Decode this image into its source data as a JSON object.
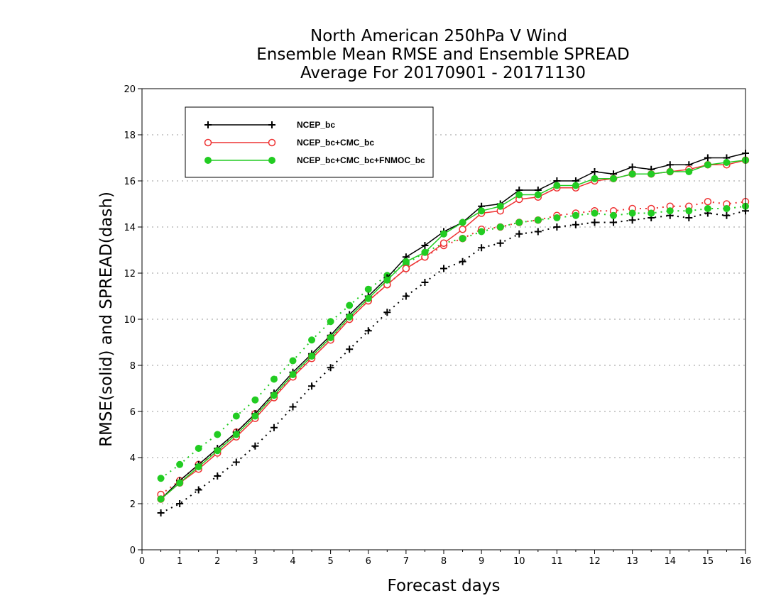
{
  "chart_data": {
    "type": "line",
    "title": [
      "North American 250hPa V Wind",
      "Ensemble Mean RMSE and Ensemble SPREAD",
      "Average For 20170901 - 20171130"
    ],
    "xlabel": "Forecast days",
    "ylabel": "RMSE(solid) and SPREAD(dash)",
    "xlim": [
      0,
      16
    ],
    "ylim": [
      0,
      20
    ],
    "x_ticks": [
      "0",
      "1",
      "2",
      "3",
      "4",
      "5",
      "6",
      "7",
      "8",
      "9",
      "10",
      "11",
      "12",
      "13",
      "14",
      "15",
      "16"
    ],
    "y_ticks": [
      "0",
      "2",
      "4",
      "6",
      "8",
      "10",
      "12",
      "14",
      "16",
      "18",
      "20"
    ],
    "grid": "horizontal dotted",
    "legend_position": "top-left",
    "x": [
      0.5,
      1,
      1.5,
      2,
      2.5,
      3,
      3.5,
      4,
      4.5,
      5,
      5.5,
      6,
      6.5,
      7,
      7.5,
      8,
      8.5,
      9,
      9.5,
      10,
      10.5,
      11,
      11.5,
      12,
      12.5,
      13,
      13.5,
      14,
      14.5,
      15,
      15.5,
      16
    ],
    "series": [
      {
        "name": "NCEP_bc",
        "color": "#000000",
        "marker": "plus",
        "rmse": [
          2.2,
          3.0,
          3.7,
          4.4,
          5.1,
          5.9,
          6.8,
          7.7,
          8.5,
          9.3,
          10.2,
          11.0,
          11.8,
          12.7,
          13.2,
          13.8,
          14.2,
          14.9,
          15.0,
          15.6,
          15.6,
          16.0,
          16.0,
          16.4,
          16.3,
          16.6,
          16.5,
          16.7,
          16.7,
          17.0,
          17.0,
          17.2
        ],
        "spread": [
          1.6,
          2.0,
          2.6,
          3.2,
          3.8,
          4.5,
          5.3,
          6.2,
          7.1,
          7.9,
          8.7,
          9.5,
          10.3,
          11.0,
          11.6,
          12.2,
          12.5,
          13.1,
          13.3,
          13.7,
          13.8,
          14.0,
          14.1,
          14.2,
          14.2,
          14.3,
          14.4,
          14.5,
          14.4,
          14.6,
          14.5,
          14.7
        ]
      },
      {
        "name": "NCEP_bc+CMC_bc",
        "color": "#ee3333",
        "marker": "open-circle",
        "rmse": [
          2.2,
          2.9,
          3.5,
          4.2,
          4.9,
          5.7,
          6.6,
          7.5,
          8.3,
          9.1,
          10.0,
          10.8,
          11.5,
          12.2,
          12.7,
          13.3,
          13.9,
          14.6,
          14.7,
          15.2,
          15.3,
          15.7,
          15.7,
          16.0,
          16.1,
          16.3,
          16.3,
          16.4,
          16.5,
          16.7,
          16.7,
          16.9
        ],
        "spread": [
          2.4,
          3.0,
          3.7,
          4.3,
          5.1,
          5.9,
          6.7,
          7.5,
          8.4,
          9.2,
          10.0,
          10.8,
          11.5,
          12.2,
          12.7,
          13.2,
          13.5,
          13.9,
          14.0,
          14.2,
          14.3,
          14.5,
          14.6,
          14.7,
          14.7,
          14.8,
          14.8,
          14.9,
          14.9,
          15.1,
          15.0,
          15.1
        ]
      },
      {
        "name": "NCEP_bc+CMC_bc+FNMOC_bc",
        "color": "#22cc22",
        "marker": "filled-circle",
        "rmse": [
          2.2,
          2.9,
          3.6,
          4.3,
          5.0,
          5.8,
          6.7,
          7.6,
          8.4,
          9.2,
          10.1,
          10.9,
          11.7,
          12.5,
          12.9,
          13.7,
          14.2,
          14.7,
          14.9,
          15.4,
          15.4,
          15.8,
          15.8,
          16.1,
          16.1,
          16.3,
          16.3,
          16.4,
          16.4,
          16.7,
          16.8,
          16.9
        ],
        "spread": [
          3.1,
          3.7,
          4.4,
          5.0,
          5.8,
          6.5,
          7.4,
          8.2,
          9.1,
          9.9,
          10.6,
          11.3,
          11.9,
          12.4,
          12.9,
          13.3,
          13.5,
          13.8,
          14.0,
          14.2,
          14.3,
          14.4,
          14.5,
          14.6,
          14.5,
          14.6,
          14.6,
          14.7,
          14.7,
          14.8,
          14.8,
          14.9
        ]
      }
    ]
  }
}
